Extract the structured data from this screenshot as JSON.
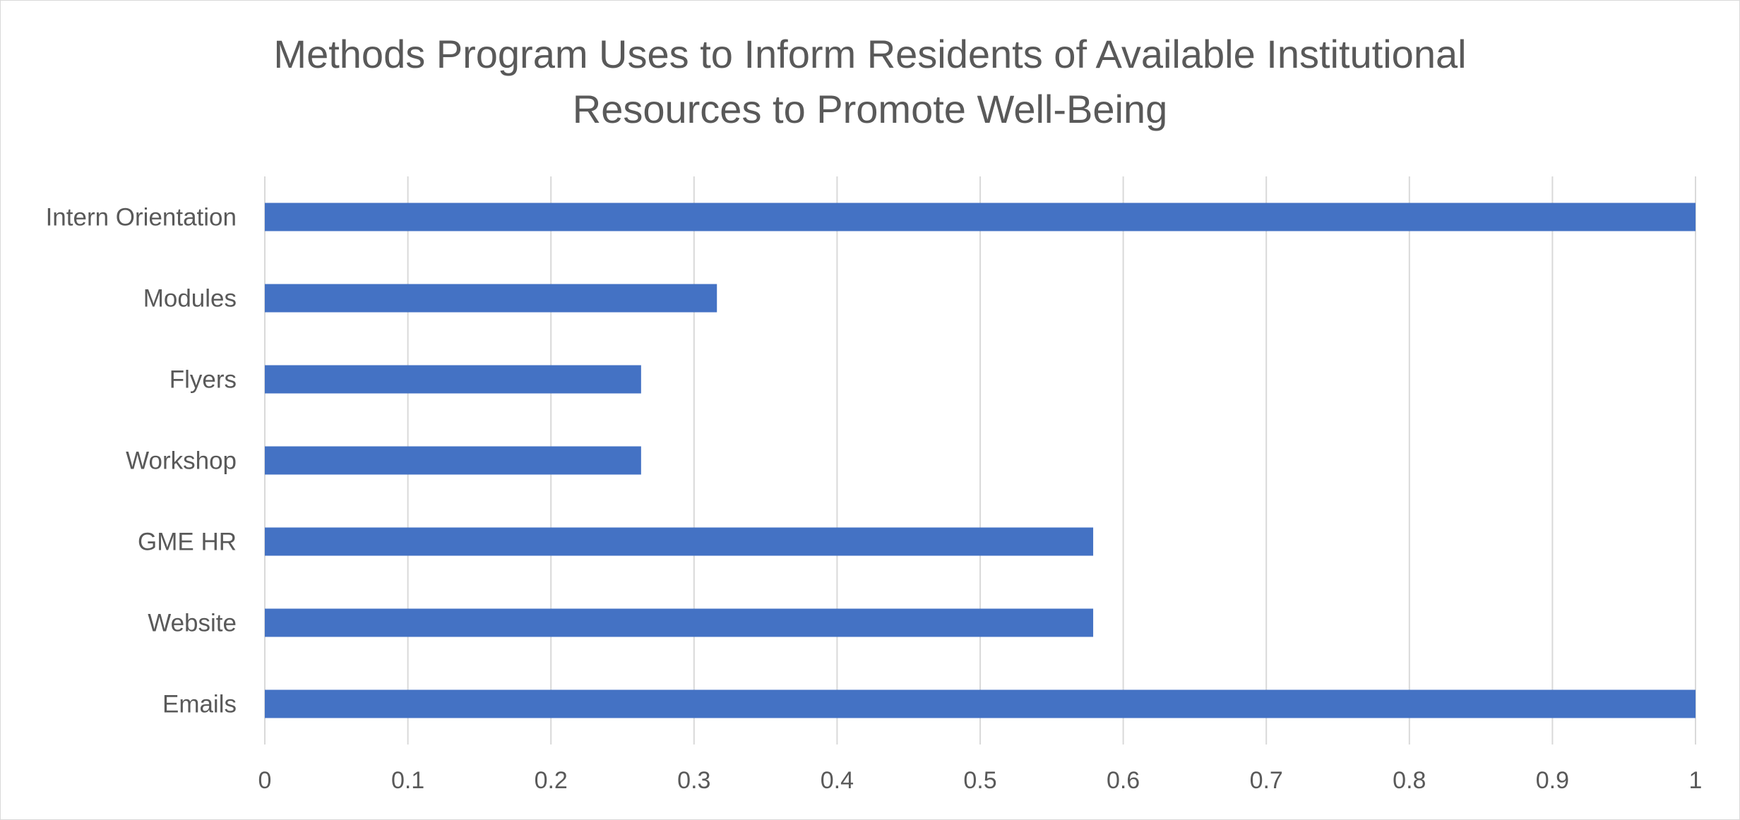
{
  "chart_data": {
    "type": "bar",
    "orientation": "horizontal",
    "title_lines": [
      "Methods Program Uses to Inform Residents of Available Institutional",
      "Resources to Promote Well-Being"
    ],
    "categories": [
      "Intern Orientation",
      "Modules",
      "Flyers",
      "Workshop",
      "GME HR",
      "Website",
      "Emails"
    ],
    "values": [
      1,
      0.316,
      0.263,
      0.263,
      0.579,
      0.579,
      1
    ],
    "xlim": [
      0,
      1
    ],
    "xticks": [
      0,
      0.1,
      0.2,
      0.3,
      0.4,
      0.5,
      0.6,
      0.7,
      0.8,
      0.9,
      1
    ],
    "xtick_labels": [
      "0",
      "0.1",
      "0.2",
      "0.3",
      "0.4",
      "0.5",
      "0.6",
      "0.7",
      "0.8",
      "0.9",
      "1"
    ],
    "grid": "vertical",
    "legend": "none",
    "bar_color": "#4472c4",
    "grid_color": "#d9d9d9",
    "text_color": "#595959"
  }
}
